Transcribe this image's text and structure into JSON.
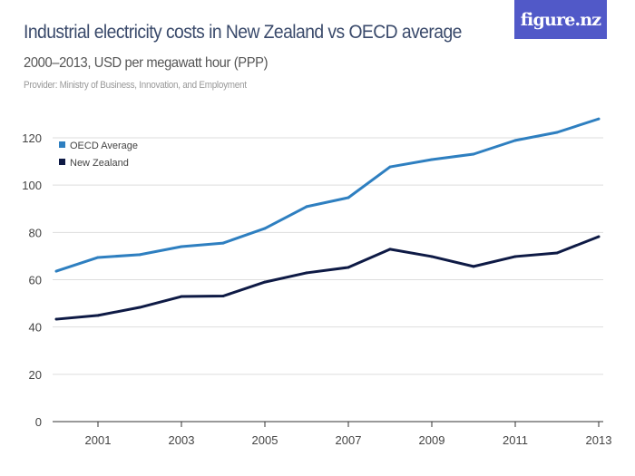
{
  "header": {
    "title": "Industrial electricity costs in New Zealand vs OECD average",
    "subtitle": "2000–2013, USD per megawatt hour (PPP)",
    "provider": "Provider: Ministry of Business, Innovation, and Employment",
    "logo": "figure.nz"
  },
  "chart_data": {
    "type": "line",
    "title": "Industrial electricity costs in New Zealand vs OECD average",
    "subtitle": "2000–2013, USD per megawatt hour (PPP)",
    "x": [
      2000,
      2001,
      2002,
      2003,
      2004,
      2005,
      2006,
      2007,
      2008,
      2009,
      2010,
      2011,
      2012,
      2013
    ],
    "xticks": [
      "2001",
      "2003",
      "2005",
      "2007",
      "2009",
      "2011",
      "2013"
    ],
    "yticks": [
      "0",
      "20",
      "40",
      "60",
      "80",
      "100",
      "120"
    ],
    "ylim": [
      0,
      120
    ],
    "grid": true,
    "legend": "top-left",
    "series": [
      {
        "name": "OECD Average",
        "color": "#2e7fc0",
        "values": [
          63.6,
          69.4,
          70.6,
          74,
          75.5,
          81.7,
          90.9,
          94.7,
          107.7,
          110.8,
          113.1,
          118.9,
          122.3,
          128
        ]
      },
      {
        "name": "New Zealand",
        "color": "#0e1a45",
        "values": [
          43.3,
          44.9,
          48.3,
          52.9,
          53.1,
          59,
          62.9,
          65.2,
          72.9,
          69.8,
          65.6,
          69.8,
          71.3,
          78.2
        ]
      }
    ]
  }
}
